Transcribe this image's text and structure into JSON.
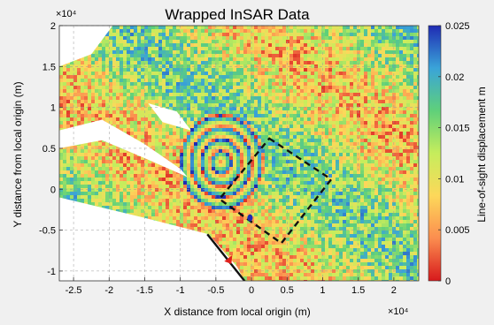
{
  "chart_data": {
    "type": "heatmap",
    "title": "Wrapped InSAR Data",
    "xlabel": "X distance from local origin (m)",
    "ylabel": "Y distance from local origin (m)",
    "x_multiplier": "×10⁴",
    "y_multiplier": "×10⁴",
    "xlim": [
      -2.7,
      2.35
    ],
    "ylim": [
      -1.12,
      2.0
    ],
    "xticks": [
      -2.5,
      -2,
      -1.5,
      -1,
      -0.5,
      0,
      0.5,
      1,
      1.5,
      2
    ],
    "yticks": [
      -1,
      -0.5,
      0,
      0.5,
      1,
      1.5,
      2
    ],
    "grid": true,
    "colorbar": {
      "label": "Line-of-sight displacement m",
      "range": [
        0,
        0.025
      ],
      "ticks": [
        0,
        0.005,
        0.01,
        0.015,
        0.02,
        0.025
      ],
      "colormap": [
        "#d7191c",
        "#fb8d4f",
        "#fdd85a",
        "#c6ed5c",
        "#5fd07a",
        "#3aa4d8",
        "#1f2bb3"
      ]
    },
    "annotations": {
      "dashed_box": {
        "corners": [
          [
            0.25,
            0.62
          ],
          [
            1.12,
            0.12
          ],
          [
            0.42,
            -0.66
          ],
          [
            -0.45,
            -0.12
          ]
        ],
        "color": "#111111"
      },
      "fault_line": {
        "start": [
          -0.62,
          -0.55
        ],
        "end": [
          -0.08,
          -1.14
        ],
        "color": "#111111"
      },
      "red_marker": [
        -0.32,
        -0.86
      ],
      "blue_marker": [
        -0.02,
        -0.35
      ]
    }
  }
}
